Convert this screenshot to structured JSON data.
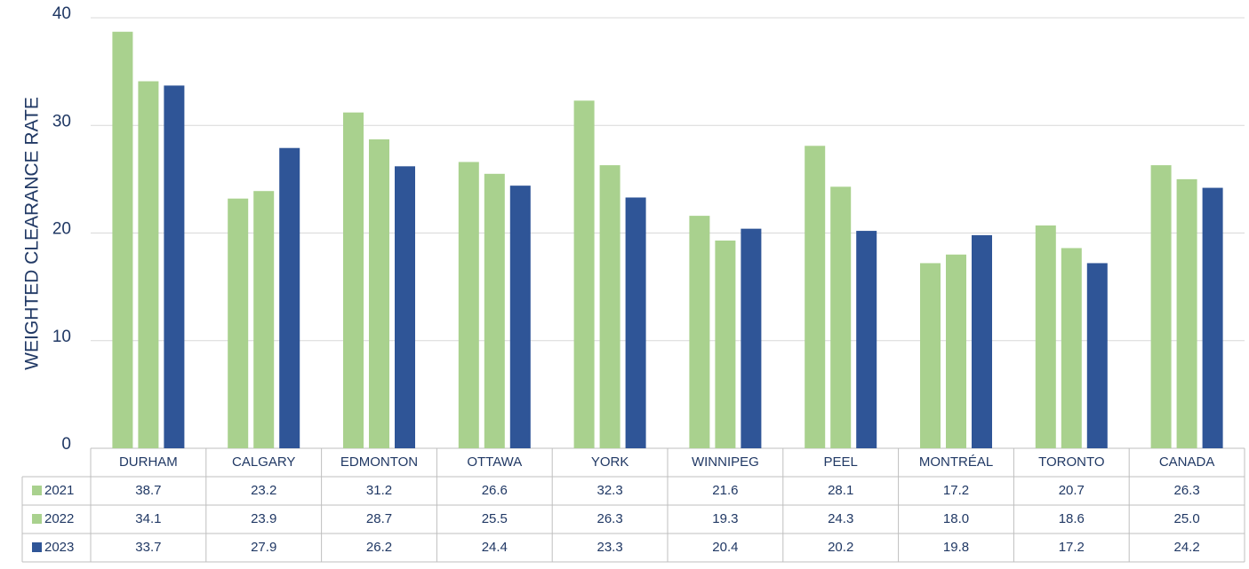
{
  "chart_data": {
    "type": "bar",
    "y_label": "WEIGHTED CLEARANCE RATE",
    "categories": [
      "DURHAM",
      "CALGARY",
      "EDMONTON",
      "OTTAWA",
      "YORK",
      "WINNIPEG",
      "PEEL",
      "MONTRÉAL",
      "TORONTO",
      "CANADA"
    ],
    "series": [
      {
        "name": "2021",
        "color": "#a9d18e",
        "values": [
          38.7,
          23.2,
          31.2,
          26.6,
          32.3,
          21.6,
          28.1,
          17.2,
          20.7,
          26.3
        ],
        "value_labels": [
          "38.7",
          "23.2",
          "31.2",
          "26.6",
          "32.3",
          "21.6",
          "28.1",
          "17.2",
          "20.7",
          "26.3"
        ]
      },
      {
        "name": "2022",
        "color": "#a9d18e",
        "values": [
          34.1,
          23.9,
          28.7,
          25.5,
          26.3,
          19.3,
          24.3,
          18,
          18.6,
          25
        ],
        "value_labels": [
          "34.1",
          "23.9",
          "28.7",
          "25.5",
          "26.3",
          "19.3",
          "24.3",
          "18.0",
          "18.6",
          "25.0"
        ]
      },
      {
        "name": "2023",
        "color": "#2f5597",
        "values": [
          33.7,
          27.9,
          26.2,
          24.4,
          23.3,
          20.4,
          20.2,
          19.8,
          17.2,
          24.2
        ],
        "value_labels": [
          "33.7",
          "27.9",
          "26.2",
          "24.4",
          "23.3",
          "20.4",
          "20.2",
          "19.8",
          "17.2",
          "24.2"
        ]
      }
    ],
    "ylim": [
      0,
      40
    ],
    "yticks": [
      0,
      10,
      20,
      30,
      40
    ],
    "grid": true
  }
}
